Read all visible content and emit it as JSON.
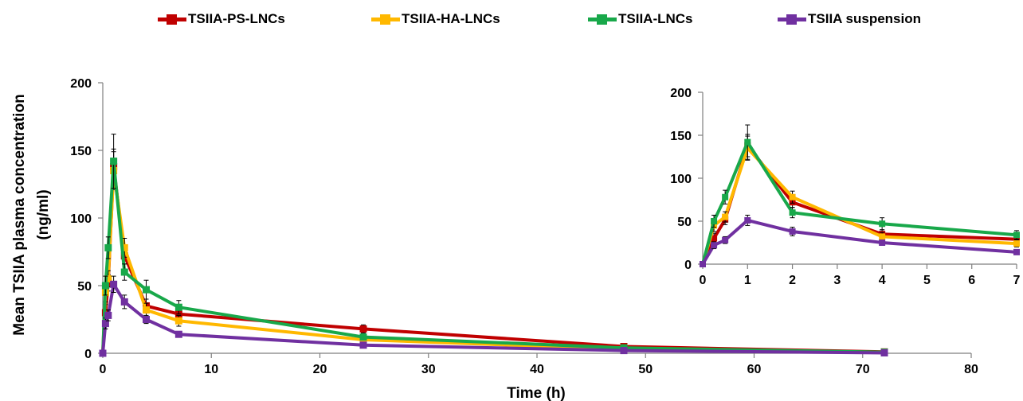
{
  "chart_data": [
    {
      "type": "line",
      "xlabel": "Time  (h)",
      "ylabel_line1": "Mean  TSIIA plasma concentration",
      "ylabel_line2": "(ng/ml)",
      "xlim": [
        0,
        80
      ],
      "ylim": [
        0,
        200
      ],
      "xticks": [
        0,
        10,
        20,
        30,
        40,
        50,
        60,
        70,
        80
      ],
      "yticks": [
        0,
        50,
        100,
        150,
        200
      ],
      "grid": false,
      "legend_placement": "top",
      "series": [
        {
          "name": "TSIIA-PS-LNCs",
          "color": "#C00000",
          "x": [
            0,
            0.25,
            0.5,
            1,
            2,
            4,
            7,
            24,
            48,
            72
          ],
          "y": [
            0,
            30,
            52,
            138,
            72,
            35,
            29,
            18,
            5,
            1
          ],
          "err": [
            0,
            6,
            6,
            13,
            6,
            5,
            4,
            3,
            1.5,
            0.5
          ]
        },
        {
          "name": "TSIIA-HA-LNCs",
          "color": "#FFB800",
          "x": [
            0,
            0.25,
            0.5,
            1,
            2,
            4,
            7,
            24,
            48,
            72
          ],
          "y": [
            0,
            45,
            55,
            135,
            78,
            32,
            24,
            10,
            3,
            0.5
          ],
          "err": [
            0,
            7,
            6,
            14,
            7,
            5,
            4,
            2,
            1,
            0.5
          ]
        },
        {
          "name": "TSIIA-LNCs",
          "color": "#18A84A",
          "x": [
            0,
            0.25,
            0.5,
            1,
            2,
            4,
            7,
            24,
            48,
            72
          ],
          "y": [
            0,
            50,
            78,
            142,
            60,
            47,
            34,
            12,
            4,
            0.8
          ],
          "err": [
            0,
            7,
            8,
            20,
            6,
            7,
            5,
            2,
            1,
            0.5
          ]
        },
        {
          "name": "TSIIA suspension",
          "color": "#7030A0",
          "x": [
            0,
            0.25,
            0.5,
            1,
            2,
            4,
            7,
            24,
            48,
            72
          ],
          "y": [
            0,
            22,
            28,
            51,
            38,
            25,
            14,
            6,
            2,
            0.3
          ],
          "err": [
            0,
            4,
            4,
            6,
            5,
            3,
            2,
            1,
            0.5,
            0.2
          ]
        }
      ]
    },
    {
      "type": "line",
      "xlim": [
        0,
        7
      ],
      "ylim": [
        0,
        200
      ],
      "xticks": [
        0,
        1,
        2,
        3,
        4,
        5,
        6,
        7
      ],
      "yticks": [
        0,
        50,
        100,
        150,
        200
      ],
      "grid": false,
      "note_inset_of_main_chart_first_7h": true,
      "series": [
        {
          "name": "TSIIA-PS-LNCs",
          "color": "#C00000",
          "x": [
            0,
            0.25,
            0.5,
            1,
            2,
            4,
            7
          ],
          "y": [
            0,
            30,
            52,
            138,
            72,
            35,
            29
          ],
          "err": [
            0,
            6,
            6,
            13,
            6,
            5,
            4
          ]
        },
        {
          "name": "TSIIA-HA-LNCs",
          "color": "#FFB800",
          "x": [
            0,
            0.25,
            0.5,
            1,
            2,
            4,
            7
          ],
          "y": [
            0,
            45,
            55,
            135,
            78,
            32,
            24
          ],
          "err": [
            0,
            7,
            6,
            14,
            7,
            5,
            4
          ]
        },
        {
          "name": "TSIIA-LNCs",
          "color": "#18A84A",
          "x": [
            0,
            0.25,
            0.5,
            1,
            2,
            4,
            7
          ],
          "y": [
            0,
            50,
            78,
            142,
            60,
            47,
            34
          ],
          "err": [
            0,
            7,
            8,
            20,
            6,
            7,
            5
          ]
        },
        {
          "name": "TSIIA suspension",
          "color": "#7030A0",
          "x": [
            0,
            0.25,
            0.5,
            1,
            2,
            4,
            7
          ],
          "y": [
            0,
            22,
            28,
            51,
            38,
            25,
            14
          ],
          "err": [
            0,
            4,
            4,
            6,
            5,
            3,
            2
          ]
        }
      ]
    }
  ],
  "legend": [
    {
      "label": "TSIIA-PS-LNCs",
      "color": "#C00000"
    },
    {
      "label": "TSIIA-HA-LNCs",
      "color": "#FFB800"
    },
    {
      "label": "TSIIA-LNCs",
      "color": "#18A84A"
    },
    {
      "label": "TSIIA suspension",
      "color": "#7030A0"
    }
  ]
}
